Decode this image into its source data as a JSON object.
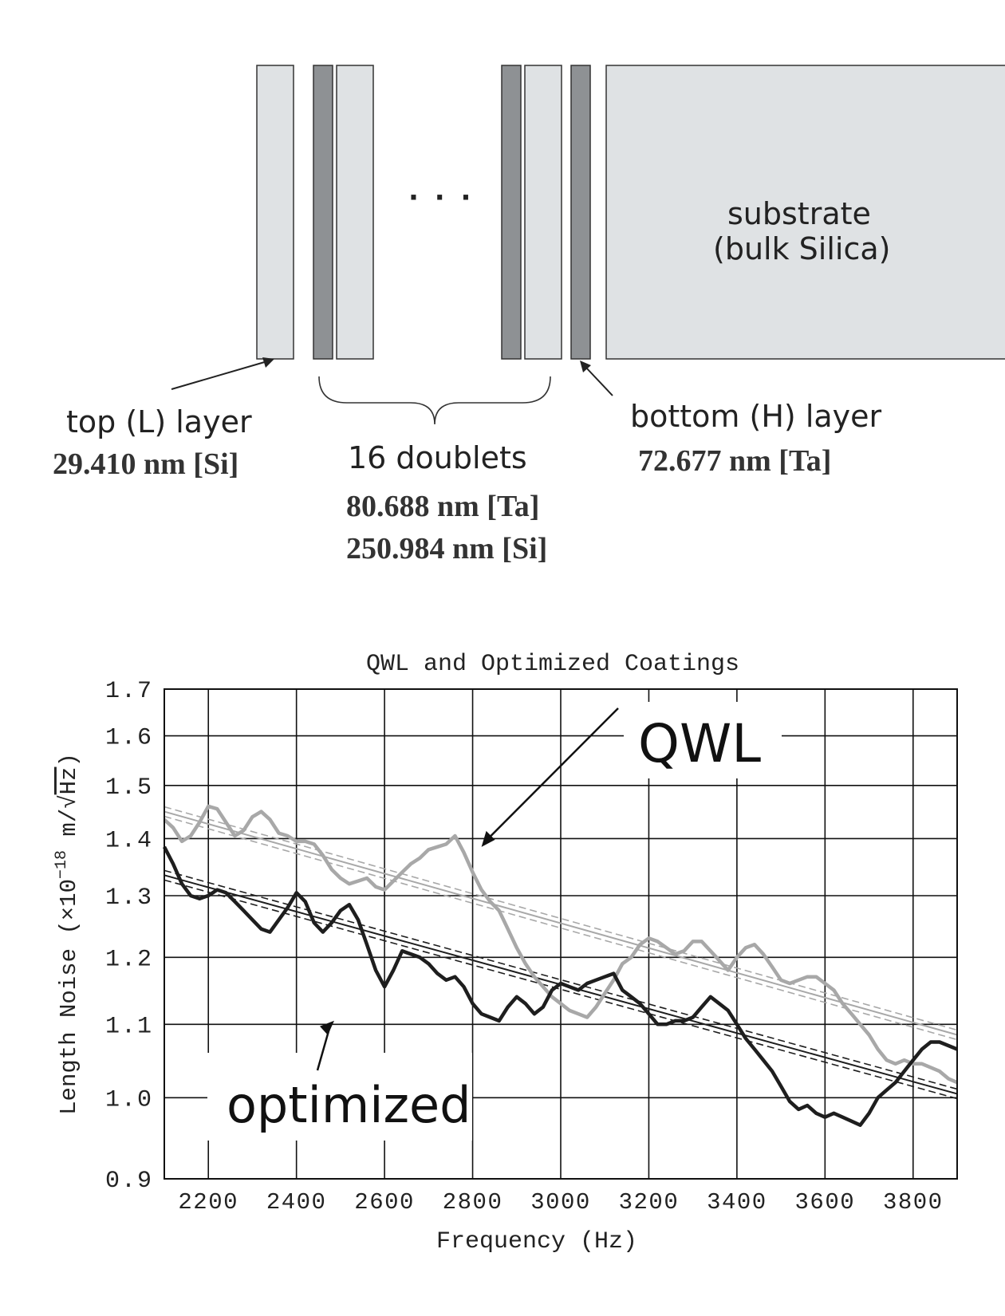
{
  "diagram": {
    "ellipsis": "· · ·",
    "substrate_line1": "substrate",
    "substrate_line2": "(bulk Silica)",
    "top_label": "top (L) layer",
    "top_value": "29.410 nm [Si]",
    "doublets_label": "16 doublets",
    "doublets_value1": "80.688 nm [Ta]",
    "doublets_value2": "250.984 nm [Si]",
    "bottom_label": "bottom (H) layer",
    "bottom_value": "72.677 nm [Ta]",
    "colors": {
      "light_layer": "#dfe2e4",
      "dark_layer": "#8e9194",
      "outline": "#333333"
    }
  },
  "chart_data": {
    "type": "line",
    "title": "QWL and Optimized Coatings",
    "xlabel": "Frequency (Hz)",
    "ylabel_prefix": "Length Noise (×10",
    "ylabel_exp": "−18",
    "ylabel_suffix": " m/",
    "ylabel_root": "Hz",
    "ylabel_close": ")",
    "x_ticks": [
      2200,
      2400,
      2600,
      2800,
      3000,
      3200,
      3400,
      3600,
      3800
    ],
    "x_tick_labels": [
      "2200",
      "2400",
      "2600",
      "2800",
      "3000",
      "3200",
      "3400",
      "3600",
      "3800"
    ],
    "y_ticks": [
      0.9,
      1.0,
      1.1,
      1.2,
      1.3,
      1.4,
      1.5,
      1.6,
      1.7
    ],
    "y_tick_labels": [
      "0.9",
      "1.0",
      "1.1",
      "1.2",
      "1.3",
      "1.4",
      "1.5",
      "1.6",
      "1.7"
    ],
    "xlim": [
      2100,
      3900
    ],
    "ylim": [
      0.9,
      1.7
    ],
    "y_scale": "log",
    "grid": true,
    "annotations": [
      {
        "text": "QWL",
        "points_to_x": 2820,
        "points_to_y": 1.385
      },
      {
        "text": "optimized",
        "points_to_x": 2540,
        "points_to_y": 1.14
      }
    ],
    "series": [
      {
        "color": "#a8a8a8",
        "x": [
          2100,
          2120,
          2140,
          2160,
          2180,
          2200,
          2220,
          2240,
          2260,
          2280,
          2300,
          2320,
          2340,
          2360,
          2380,
          2400,
          2420,
          2440,
          2460,
          2480,
          2500,
          2520,
          2540,
          2560,
          2580,
          2600,
          2620,
          2640,
          2660,
          2680,
          2700,
          2720,
          2740,
          2760,
          2780,
          2800,
          2820,
          2840,
          2860,
          2880,
          2900,
          2920,
          2940,
          2960,
          2980,
          3000,
          3020,
          3040,
          3060,
          3080,
          3100,
          3120,
          3140,
          3160,
          3180,
          3200,
          3220,
          3240,
          3260,
          3280,
          3300,
          3320,
          3340,
          3360,
          3380,
          3400,
          3420,
          3440,
          3460,
          3480,
          3500,
          3520,
          3540,
          3560,
          3580,
          3600,
          3620,
          3640,
          3660,
          3680,
          3700,
          3720,
          3740,
          3760,
          3780,
          3800,
          3820,
          3840,
          3860,
          3880,
          3900
        ],
        "y": [
          1.435,
          1.42,
          1.395,
          1.405,
          1.43,
          1.46,
          1.455,
          1.43,
          1.405,
          1.415,
          1.44,
          1.45,
          1.435,
          1.41,
          1.405,
          1.395,
          1.395,
          1.39,
          1.37,
          1.345,
          1.33,
          1.32,
          1.325,
          1.33,
          1.315,
          1.31,
          1.325,
          1.34,
          1.355,
          1.365,
          1.38,
          1.385,
          1.39,
          1.405,
          1.375,
          1.34,
          1.31,
          1.29,
          1.275,
          1.245,
          1.215,
          1.19,
          1.17,
          1.155,
          1.14,
          1.13,
          1.12,
          1.115,
          1.11,
          1.125,
          1.145,
          1.165,
          1.19,
          1.2,
          1.22,
          1.23,
          1.225,
          1.215,
          1.205,
          1.21,
          1.225,
          1.225,
          1.21,
          1.195,
          1.18,
          1.2,
          1.215,
          1.22,
          1.205,
          1.185,
          1.165,
          1.16,
          1.165,
          1.17,
          1.17,
          1.16,
          1.15,
          1.13,
          1.115,
          1.1,
          1.085,
          1.065,
          1.05,
          1.045,
          1.05,
          1.045,
          1.045,
          1.04,
          1.035,
          1.025,
          1.02
        ]
      },
      {
        "color": "#1e1e1e",
        "x": [
          2100,
          2120,
          2140,
          2160,
          2180,
          2200,
          2220,
          2240,
          2260,
          2280,
          2300,
          2320,
          2340,
          2360,
          2380,
          2400,
          2420,
          2440,
          2460,
          2480,
          2500,
          2520,
          2540,
          2560,
          2580,
          2600,
          2620,
          2640,
          2660,
          2680,
          2700,
          2720,
          2740,
          2760,
          2780,
          2800,
          2820,
          2840,
          2860,
          2880,
          2900,
          2920,
          2940,
          2960,
          2980,
          3000,
          3020,
          3040,
          3060,
          3080,
          3100,
          3120,
          3140,
          3160,
          3180,
          3200,
          3220,
          3240,
          3260,
          3280,
          3300,
          3320,
          3340,
          3360,
          3380,
          3400,
          3420,
          3440,
          3460,
          3480,
          3500,
          3520,
          3540,
          3560,
          3580,
          3600,
          3620,
          3640,
          3660,
          3680,
          3700,
          3720,
          3740,
          3760,
          3780,
          3800,
          3820,
          3840,
          3860,
          3880,
          3900
        ],
        "y": [
          1.385,
          1.355,
          1.32,
          1.3,
          1.295,
          1.3,
          1.31,
          1.305,
          1.29,
          1.275,
          1.26,
          1.245,
          1.24,
          1.26,
          1.28,
          1.305,
          1.29,
          1.255,
          1.24,
          1.255,
          1.275,
          1.285,
          1.26,
          1.22,
          1.18,
          1.155,
          1.18,
          1.21,
          1.205,
          1.2,
          1.19,
          1.175,
          1.165,
          1.17,
          1.155,
          1.13,
          1.115,
          1.11,
          1.105,
          1.125,
          1.14,
          1.13,
          1.115,
          1.125,
          1.15,
          1.16,
          1.155,
          1.15,
          1.16,
          1.165,
          1.17,
          1.175,
          1.15,
          1.14,
          1.13,
          1.115,
          1.1,
          1.1,
          1.105,
          1.105,
          1.11,
          1.125,
          1.14,
          1.13,
          1.12,
          1.1,
          1.08,
          1.065,
          1.05,
          1.035,
          1.015,
          0.995,
          0.985,
          0.99,
          0.98,
          0.975,
          0.98,
          0.975,
          0.97,
          0.965,
          0.98,
          1.0,
          1.01,
          1.02,
          1.035,
          1.05,
          1.065,
          1.075,
          1.075,
          1.07,
          1.065
        ]
      }
    ],
    "fits": [
      {
        "color": "#a8a8a8",
        "y_at_xmin": 1.45,
        "y_at_xmax": 1.085
      },
      {
        "color": "#1e1e1e",
        "y_at_xmin": 1.335,
        "y_at_xmax": 1.005
      }
    ]
  }
}
